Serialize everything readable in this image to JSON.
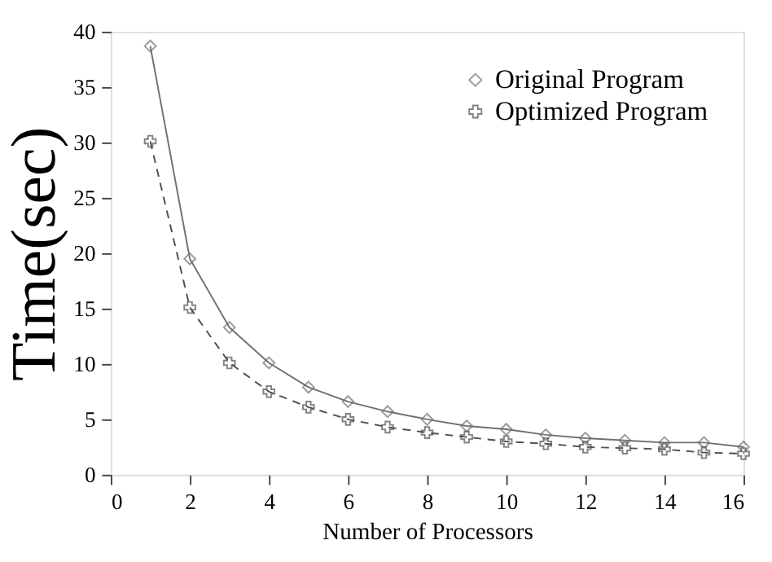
{
  "chart_data": {
    "type": "line",
    "xlabel": "Number of Processors",
    "ylabel": "Time(sec)",
    "x": [
      1,
      2,
      3,
      4,
      5,
      6,
      7,
      8,
      9,
      10,
      11,
      12,
      13,
      14,
      15,
      16
    ],
    "xlim": [
      0,
      16
    ],
    "xticks": [
      0,
      2,
      4,
      6,
      8,
      10,
      12,
      14,
      16
    ],
    "ylim": [
      0,
      40
    ],
    "yticks": [
      0,
      5,
      10,
      15,
      20,
      25,
      30,
      35,
      40
    ],
    "grid": false,
    "legend": "top right",
    "series": [
      {
        "name": "Original Program",
        "color": "#707070",
        "marker": "diamond",
        "line_style": "solid",
        "values": [
          38.7,
          19.5,
          13.3,
          10.1,
          7.9,
          6.6,
          5.7,
          5.0,
          4.4,
          4.1,
          3.6,
          3.3,
          3.1,
          2.9,
          2.9,
          2.5
        ]
      },
      {
        "name": "Optimized Program",
        "color": "#505050",
        "marker": "cross",
        "line_style": "dashed",
        "values": [
          30.1,
          15.1,
          10.1,
          7.5,
          6.1,
          5.0,
          4.3,
          3.8,
          3.4,
          3.0,
          2.8,
          2.5,
          2.4,
          2.3,
          2.0,
          1.9
        ]
      }
    ]
  }
}
